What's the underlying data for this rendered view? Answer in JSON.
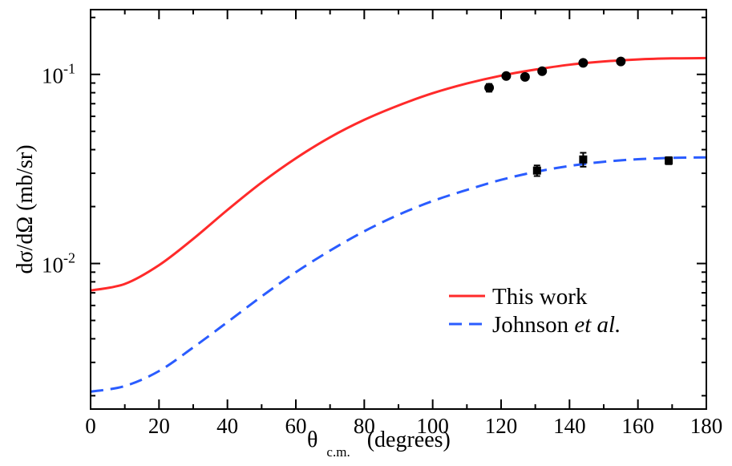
{
  "chart_data": {
    "type": "line",
    "title": "",
    "xlabel": {
      "symbol": "θ",
      "subscript": "c.m.",
      "unit": "(degrees)"
    },
    "ylabel": "dσ/dΩ  (mb/sr)",
    "xlim": [
      0,
      180
    ],
    "ylim": [
      0.0017,
      0.22
    ],
    "yscale": "log",
    "grid": false,
    "legend_position": "bottom-right",
    "x_ticks": [
      "0",
      "20",
      "40",
      "60",
      "80",
      "100",
      "120",
      "140",
      "160",
      "180"
    ],
    "y_ticks": [
      {
        "base": "10",
        "exp": "-1"
      },
      {
        "base": "10",
        "exp": "-2"
      }
    ],
    "series": [
      {
        "name": "This work",
        "style": "solid",
        "color": "#ff2a2a",
        "x": [
          0,
          10,
          20,
          30,
          40,
          50,
          60,
          70,
          80,
          90,
          100,
          110,
          120,
          130,
          140,
          150,
          160,
          170,
          180
        ],
        "y": [
          0.0072,
          0.0078,
          0.0098,
          0.0135,
          0.0192,
          0.0268,
          0.036,
          0.0465,
          0.0575,
          0.0685,
          0.0795,
          0.0895,
          0.0985,
          0.106,
          0.1125,
          0.117,
          0.12,
          0.1215,
          0.122
        ]
      },
      {
        "name": "Johnson et al.",
        "name_plain": "Johnson ",
        "name_italic": "et al.",
        "style": "dashed",
        "color": "#2a5cff",
        "x": [
          0,
          10,
          20,
          30,
          40,
          50,
          60,
          70,
          80,
          90,
          100,
          110,
          120,
          130,
          140,
          150,
          160,
          170,
          180
        ],
        "y": [
          0.0021,
          0.00225,
          0.0027,
          0.0036,
          0.0049,
          0.0067,
          0.009,
          0.0117,
          0.0148,
          0.0181,
          0.0214,
          0.0245,
          0.0277,
          0.0305,
          0.0328,
          0.0345,
          0.0356,
          0.0362,
          0.0364
        ]
      }
    ],
    "data_points": [
      {
        "name": "circle-data",
        "marker": "circle",
        "points": [
          {
            "x": 116.5,
            "y": 0.085,
            "err": 0.004
          },
          {
            "x": 121.5,
            "y": 0.098,
            "err": 0.003
          },
          {
            "x": 127,
            "y": 0.097,
            "err": 0.003
          },
          {
            "x": 132,
            "y": 0.104,
            "err": 0.003
          },
          {
            "x": 144,
            "y": 0.115,
            "err": 0.003
          },
          {
            "x": 155,
            "y": 0.117,
            "err": 0.003
          }
        ]
      },
      {
        "name": "square-data",
        "marker": "square",
        "points": [
          {
            "x": 130.5,
            "y": 0.031,
            "err": 0.002
          },
          {
            "x": 144,
            "y": 0.0355,
            "err": 0.003
          },
          {
            "x": 169,
            "y": 0.035,
            "err": 0.0015
          }
        ]
      }
    ]
  }
}
